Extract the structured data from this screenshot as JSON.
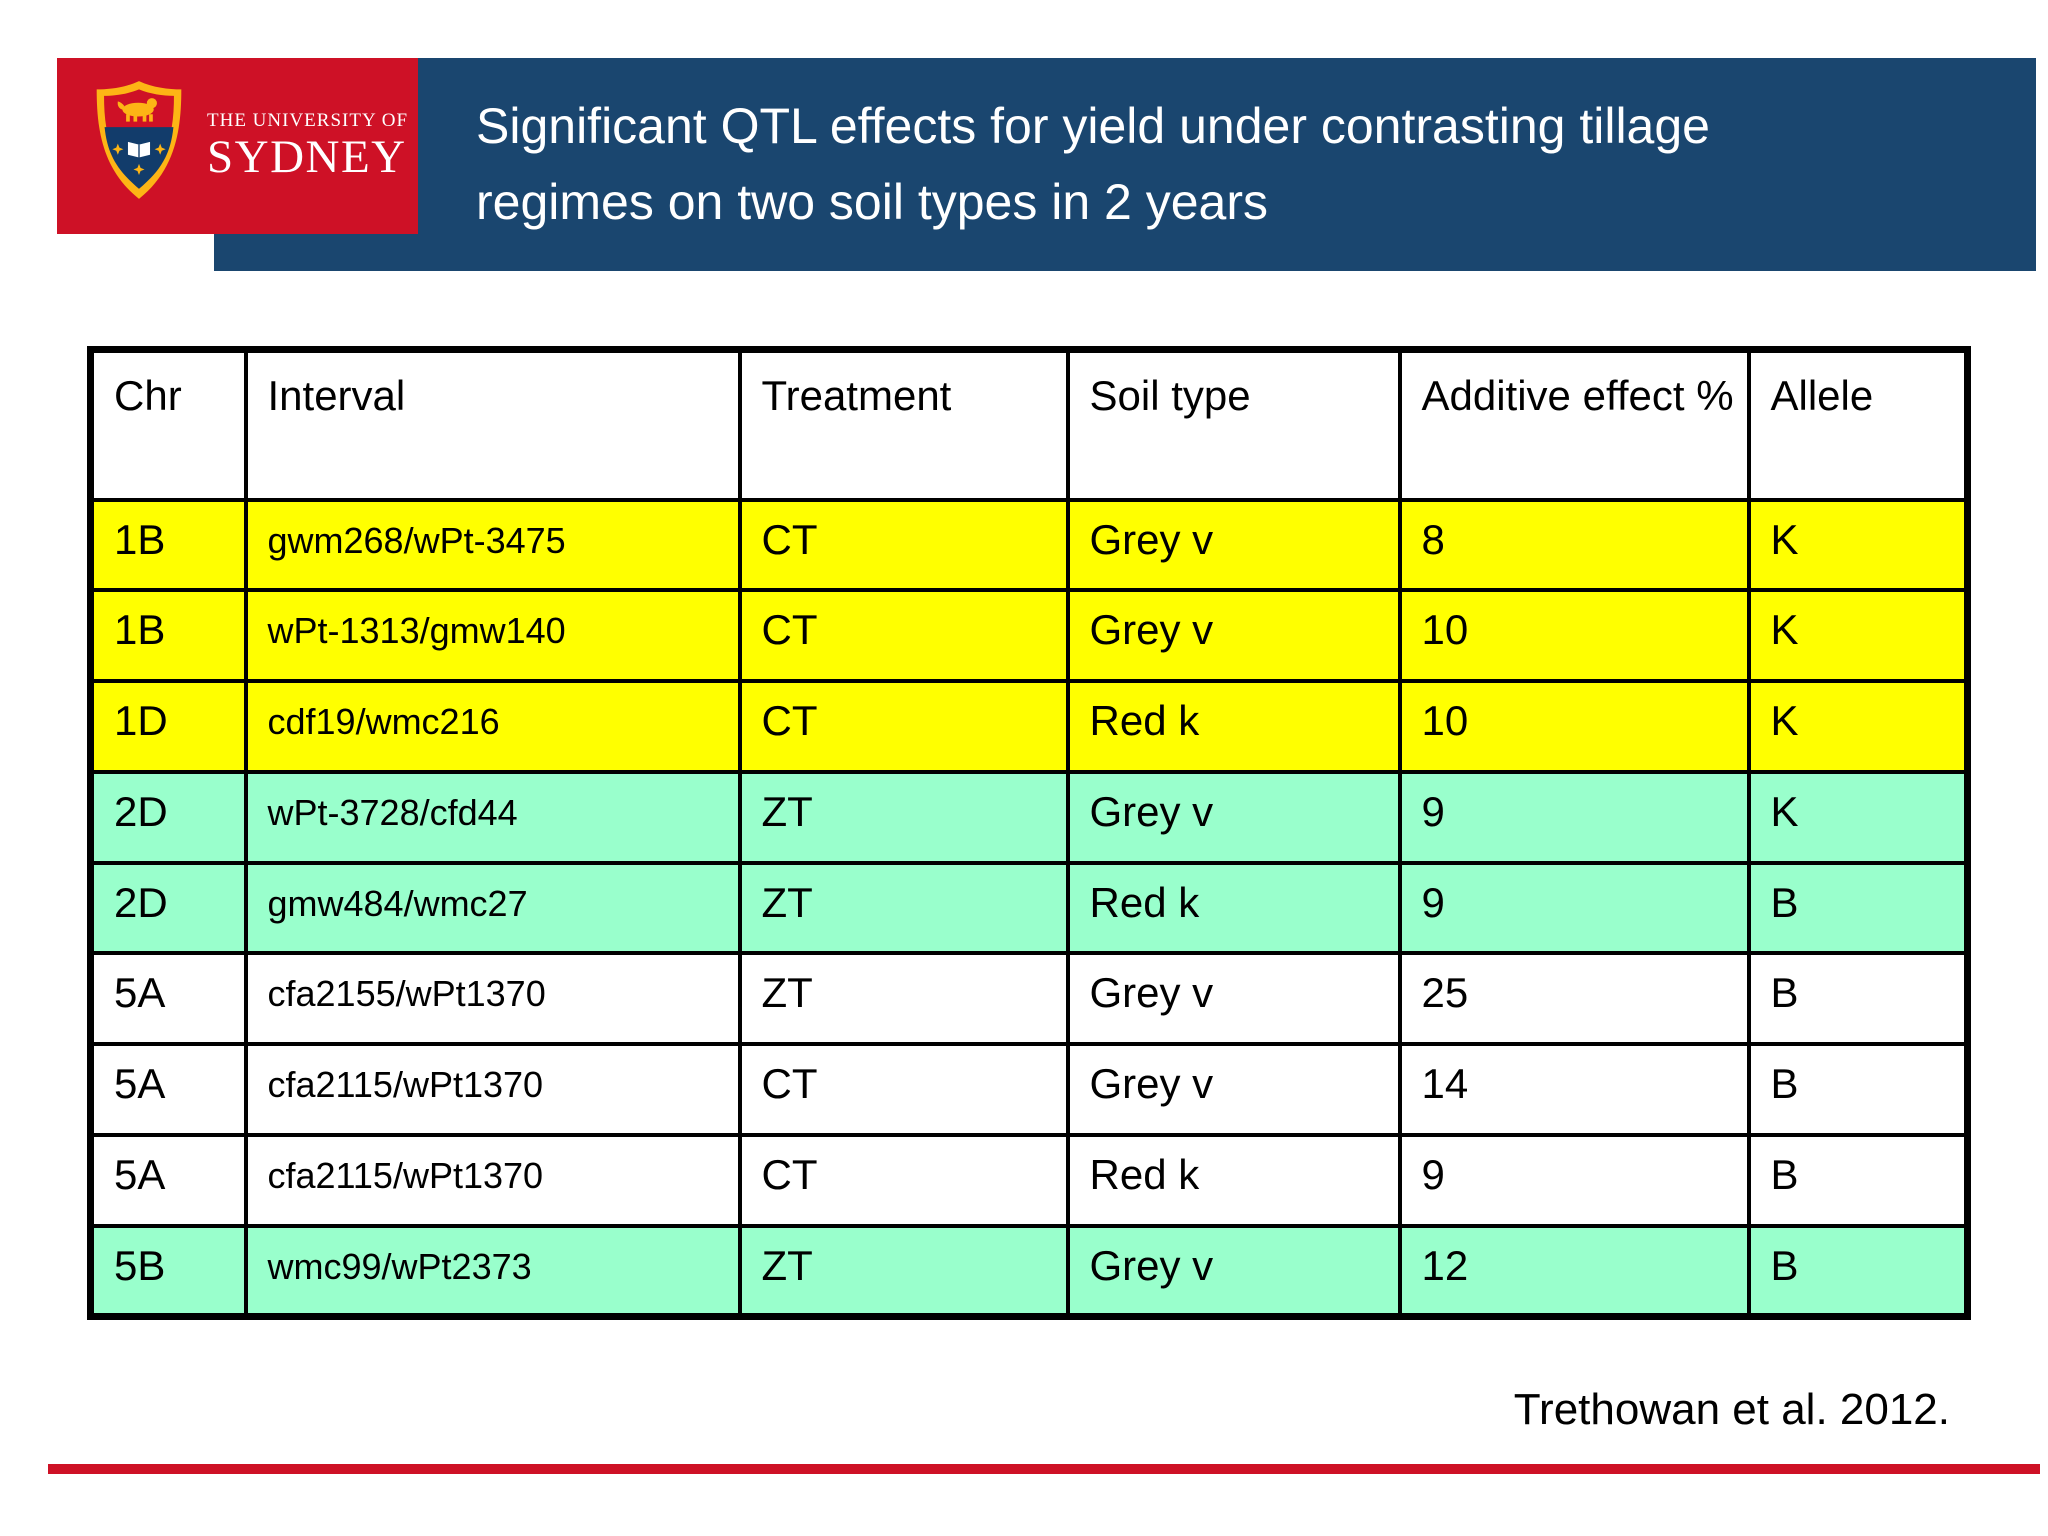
{
  "header": {
    "logo_small_text": "THE UNIVERSITY OF",
    "logo_name": "SYDNEY",
    "title_line1": "Significant QTL effects for yield under contrasting tillage",
    "title_line2": "regimes on two soil types in 2 years"
  },
  "table": {
    "columns": [
      "Chr",
      "Interval",
      "Treatment",
      "Soil type",
      "Additive effect %",
      "Allele"
    ],
    "rows": [
      {
        "chr": "1B",
        "interval": "gwm268/wPt-3475",
        "treatment": "CT",
        "soil_type": "Grey v",
        "additive_effect": "8",
        "allele": "K",
        "highlight": "yellow"
      },
      {
        "chr": "1B",
        "interval": "wPt-1313/gmw140",
        "treatment": "CT",
        "soil_type": "Grey v",
        "additive_effect": "10",
        "allele": "K",
        "highlight": "yellow"
      },
      {
        "chr": "1D",
        "interval": "cdf19/wmc216",
        "treatment": "CT",
        "soil_type": "Red k",
        "additive_effect": "10",
        "allele": "K",
        "highlight": "yellow"
      },
      {
        "chr": "2D",
        "interval": "wPt-3728/cfd44",
        "treatment": "ZT",
        "soil_type": "Grey v",
        "additive_effect": "9",
        "allele": "K",
        "highlight": "green"
      },
      {
        "chr": "2D",
        "interval": "gmw484/wmc27",
        "treatment": "ZT",
        "soil_type": "Red k",
        "additive_effect": "9",
        "allele": "B",
        "highlight": "green"
      },
      {
        "chr": "5A",
        "interval": "cfa2155/wPt1370",
        "treatment": "ZT",
        "soil_type": "Grey v",
        "additive_effect": "25",
        "allele": "B",
        "highlight": "none"
      },
      {
        "chr": "5A",
        "interval": "cfa2115/wPt1370",
        "treatment": "CT",
        "soil_type": "Grey v",
        "additive_effect": "14",
        "allele": "B",
        "highlight": "none"
      },
      {
        "chr": "5A",
        "interval": "cfa2115/wPt1370",
        "treatment": "CT",
        "soil_type": "Red k",
        "additive_effect": "9",
        "allele": "B",
        "highlight": "none"
      },
      {
        "chr": "5B",
        "interval": "wmc99/wPt2373",
        "treatment": "ZT",
        "soil_type": "Grey v",
        "additive_effect": "12",
        "allele": "B",
        "highlight": "green"
      }
    ]
  },
  "footer": {
    "citation": "Trethowan et al. 2012."
  },
  "colors": {
    "sydney_red": "#ce1126",
    "banner_blue": "#1a466f",
    "crest_gold": "#fdb515",
    "crest_blue": "#123c6b",
    "row_yellow": "#ffff00",
    "row_green": "#99ffcc",
    "divider_red": "#ce1126"
  }
}
